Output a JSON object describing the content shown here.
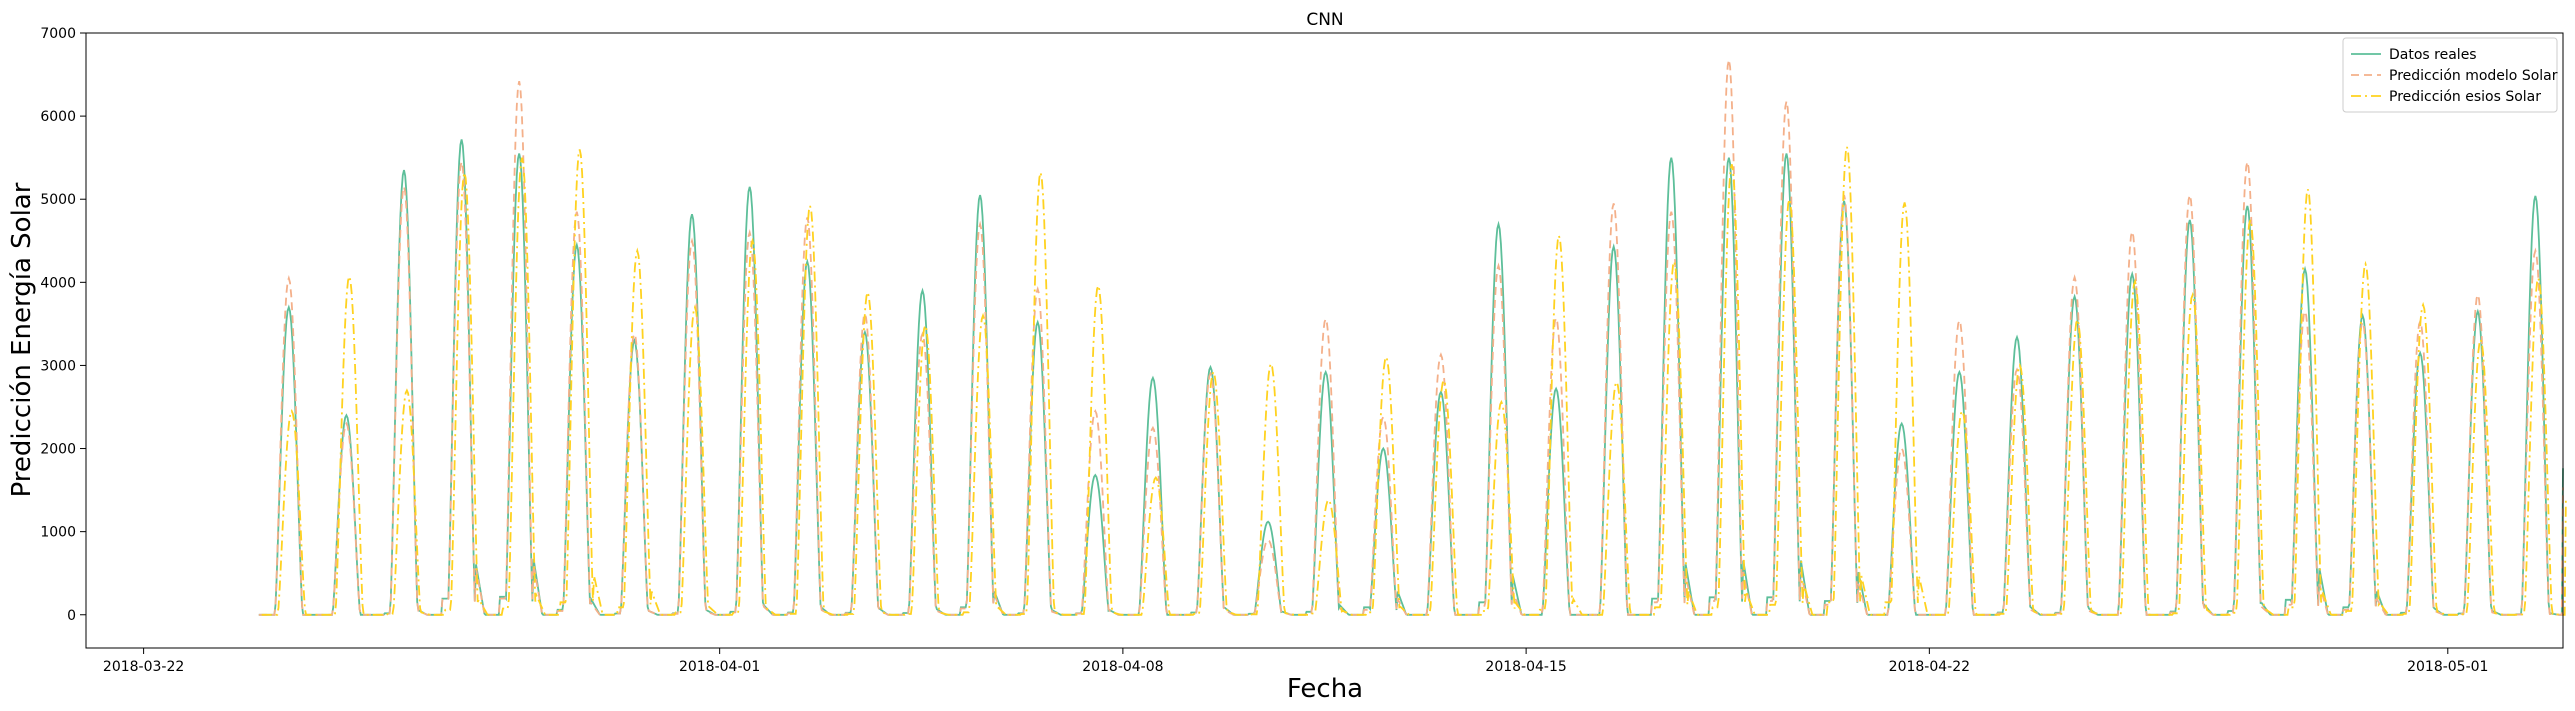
{
  "chart_data": {
    "type": "line",
    "title": "CNN",
    "xlabel": "Fecha",
    "ylabel": "Predicción Energía Solar",
    "xlim": [
      "2018-03-21",
      "2018-05-03"
    ],
    "ylim": [
      -400,
      7000
    ],
    "x_ticks": [
      "2018-03-22",
      "2018-04-01",
      "2018-04-08",
      "2018-04-15",
      "2018-04-22",
      "2018-05-01"
    ],
    "y_ticks": [
      0,
      1000,
      2000,
      3000,
      4000,
      5000,
      6000,
      7000
    ],
    "grid": false,
    "legend_position": "top-right",
    "x_start": "2018-03-24",
    "series": [
      {
        "name": "Datos reales",
        "color": "#5dbf9a",
        "style": "solid",
        "daily_peaks": [
          3700,
          2400,
          5350,
          5720,
          5550,
          4450,
          3300,
          4820,
          5150,
          4250,
          3400,
          3900,
          5050,
          3520,
          1680,
          2850,
          2980,
          1120,
          2920,
          2000,
          2680,
          4700,
          2720,
          4430,
          5500,
          5500,
          5550,
          4980,
          2300,
          2920,
          3340,
          3830,
          4100,
          4750,
          4920,
          4160,
          3600,
          3150,
          3650,
          5040
        ],
        "night_levels": [
          0,
          0,
          60,
          650,
          720,
          200,
          50,
          60,
          120,
          90,
          80,
          70,
          300,
          60,
          60,
          0,
          90,
          40,
          120,
          300,
          0,
          500,
          0,
          0,
          650,
          700,
          700,
          550,
          0,
          0,
          90,
          80,
          0,
          130,
          150,
          600,
          300,
          80,
          50,
          20
        ]
      },
      {
        "name": "Predicción modelo Solar",
        "color": "#f4b08a",
        "style": "dashed",
        "daily_peaks": [
          4050,
          2300,
          5150,
          5450,
          6420,
          4850,
          3380,
          4500,
          4600,
          4780,
          3620,
          3380,
          4700,
          3920,
          2450,
          2250,
          2900,
          900,
          3560,
          2380,
          3130,
          4200,
          3570,
          4950,
          4850,
          6680,
          6180,
          5050,
          2000,
          3540,
          2950,
          4060,
          4610,
          5050,
          5450,
          3650,
          3520,
          3530,
          3850,
          4380
        ],
        "night_levels": [
          0,
          0,
          50,
          600,
          650,
          150,
          50,
          40,
          100,
          60,
          60,
          50,
          250,
          40,
          50,
          0,
          60,
          30,
          80,
          200,
          0,
          300,
          0,
          0,
          500,
          550,
          550,
          400,
          0,
          0,
          60,
          50,
          0,
          90,
          100,
          400,
          200,
          50,
          30,
          10
        ]
      },
      {
        "name": "Predicción esios Solar",
        "color": "#ffd21f",
        "style": "dashdot",
        "daily_peaks": [
          2450,
          4070,
          2700,
          5320,
          5500,
          5600,
          4380,
          3700,
          4500,
          4920,
          3880,
          3480,
          3600,
          5320,
          3960,
          1650,
          2920,
          3020,
          1380,
          3100,
          2820,
          2560,
          4560,
          2800,
          4250,
          5420,
          5000,
          5630,
          4960,
          2450,
          3000,
          3550,
          4010,
          3850,
          4750,
          5120,
          4220,
          3730,
          3310,
          4050
        ],
        "night_levels": [
          0,
          0,
          30,
          200,
          250,
          500,
          300,
          100,
          80,
          40,
          30,
          30,
          100,
          30,
          30,
          0,
          40,
          20,
          50,
          100,
          0,
          150,
          200,
          0,
          300,
          300,
          400,
          500,
          500,
          0,
          40,
          40,
          0,
          60,
          80,
          300,
          150,
          40,
          20,
          10
        ]
      }
    ]
  }
}
